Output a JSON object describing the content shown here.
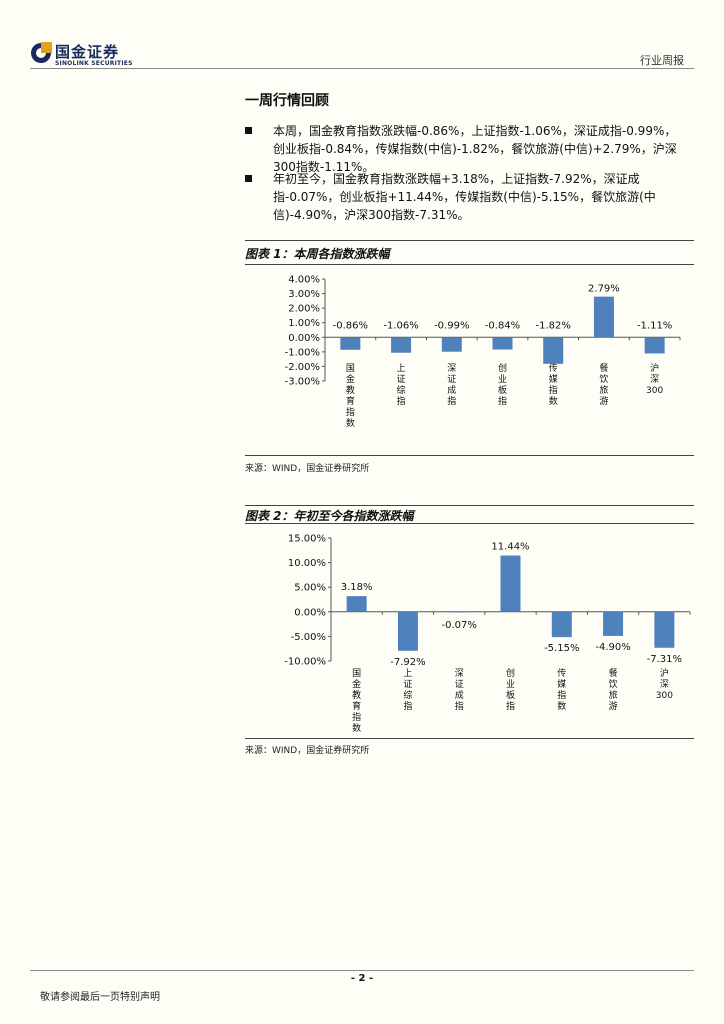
{
  "header": {
    "logo_cn": "国金证券",
    "logo_en": "SINOLINK SECURITIES",
    "right_label": "行业周报"
  },
  "section": {
    "title": "一周行情回顾",
    "bullets": [
      "本周，国金教育指数涨跌幅-0.86%，上证指数-1.06%，深证成指-0.99%，创业板指-0.84%，传媒指数(中信)-1.82%，餐饮旅游(中信)+2.79%，沪深300指数-1.11%。",
      "年初至今，国金教育指数涨跌幅+3.18%，上证指数-7.92%，深证成指-0.07%，创业板指+11.44%，传媒指数(中信)-5.15%，餐饮旅游(中信)-4.90%，沪深300指数-7.31%。"
    ]
  },
  "figures": [
    {
      "title": "图表 1：本周各指数涨跌幅",
      "source": "来源：WIND，国金证券研究所"
    },
    {
      "title": "图表 2：年初至今各指数涨跌幅",
      "source": "来源：WIND，国金证券研究所"
    }
  ],
  "chart_data": [
    {
      "type": "bar",
      "title": "",
      "categories": [
        "国金教育指数",
        "上证综指",
        "深证成指",
        "创业板指",
        "传媒指数",
        "餐饮旅游",
        "沪深300"
      ],
      "values": [
        -0.86,
        -1.06,
        -0.99,
        -0.84,
        -1.82,
        2.79,
        -1.11
      ],
      "value_labels": [
        "-0.86%",
        "-1.06%",
        "-0.99%",
        "-0.84%",
        "-1.82%",
        "2.79%",
        "-1.11%"
      ],
      "y_ticks": [
        4,
        3,
        2,
        1,
        0,
        -1,
        -2,
        -3
      ],
      "y_tick_labels": [
        "4.00%",
        "3.00%",
        "2.00%",
        "1.00%",
        "0.00%",
        "-1.00%",
        "-2.00%",
        "-3.00%"
      ],
      "ylim": [
        -3,
        4
      ],
      "grid": false,
      "bar_color": "#4f81bd"
    },
    {
      "type": "bar",
      "title": "",
      "categories": [
        "国金教育指数",
        "上证综指",
        "深证成指",
        "创业板指",
        "传媒指数",
        "餐饮旅游",
        "沪深300"
      ],
      "values": [
        3.18,
        -7.92,
        -0.07,
        11.44,
        -5.15,
        -4.9,
        -7.31
      ],
      "value_labels": [
        "3.18%",
        "-7.92%",
        "-0.07%",
        "11.44%",
        "-5.15%",
        "-4.90%",
        "-7.31%"
      ],
      "y_ticks": [
        15,
        10,
        5,
        0,
        -5,
        -10
      ],
      "y_tick_labels": [
        "15.00%",
        "10.00%",
        "5.00%",
        "0.00%",
        "-5.00%",
        "-10.00%"
      ],
      "ylim": [
        -10,
        15
      ],
      "grid": false,
      "bar_color": "#4f81bd"
    }
  ],
  "footer": {
    "page_number": "- 2 -",
    "note": "敬请参阅最后一页特别声明"
  }
}
